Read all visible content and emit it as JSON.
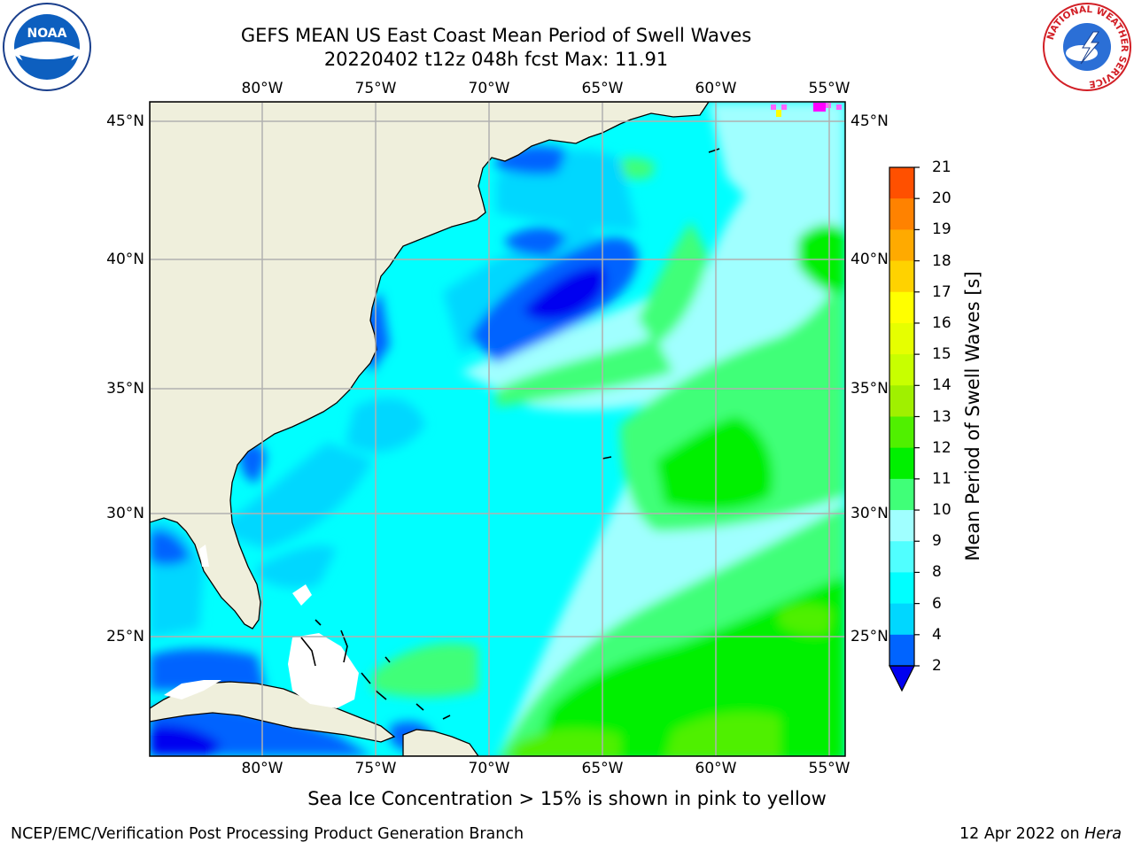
{
  "header": {
    "title_line1": "GEFS MEAN US East Coast Mean Period of Swell Waves",
    "title_line2": "20220402 t12z 048h fcst   Max: 11.91"
  },
  "map": {
    "lon_labels": [
      "80°W",
      "75°W",
      "70°W",
      "65°W",
      "60°W",
      "55°W"
    ],
    "lat_labels": [
      "45°N",
      "40°N",
      "35°N",
      "30°N",
      "25°N"
    ],
    "land_color": "#efefdc",
    "grid_color": "#b0b0b0"
  },
  "colorbar": {
    "label": "Mean Period of Swell Waves [s]",
    "ticks": [
      "2",
      "4",
      "6",
      "8",
      "9",
      "10",
      "11",
      "12",
      "13",
      "14",
      "15",
      "16",
      "17",
      "18",
      "19",
      "20",
      "21"
    ],
    "colors": [
      "#0000f0",
      "#0064ff",
      "#00d7ff",
      "#00ffff",
      "#50ffff",
      "#a0ffff",
      "#40ff78",
      "#00f000",
      "#50f000",
      "#a0f000",
      "#c8ff00",
      "#e6ff00",
      "#ffff00",
      "#ffd200",
      "#ffaa00",
      "#ff8200",
      "#ff5000",
      "#ff1e00",
      "#ff0000"
    ]
  },
  "footer": {
    "note": "Sea Ice Concentration > 15% is shown in pink to yellow",
    "credit": "NCEP/EMC/Verification Post Processing Product Generation Branch",
    "date": "12 Apr 2022 on",
    "system": "Hera"
  },
  "logos": {
    "left": "NOAA",
    "right": "NATIONAL WEATHER SERVICE"
  }
}
